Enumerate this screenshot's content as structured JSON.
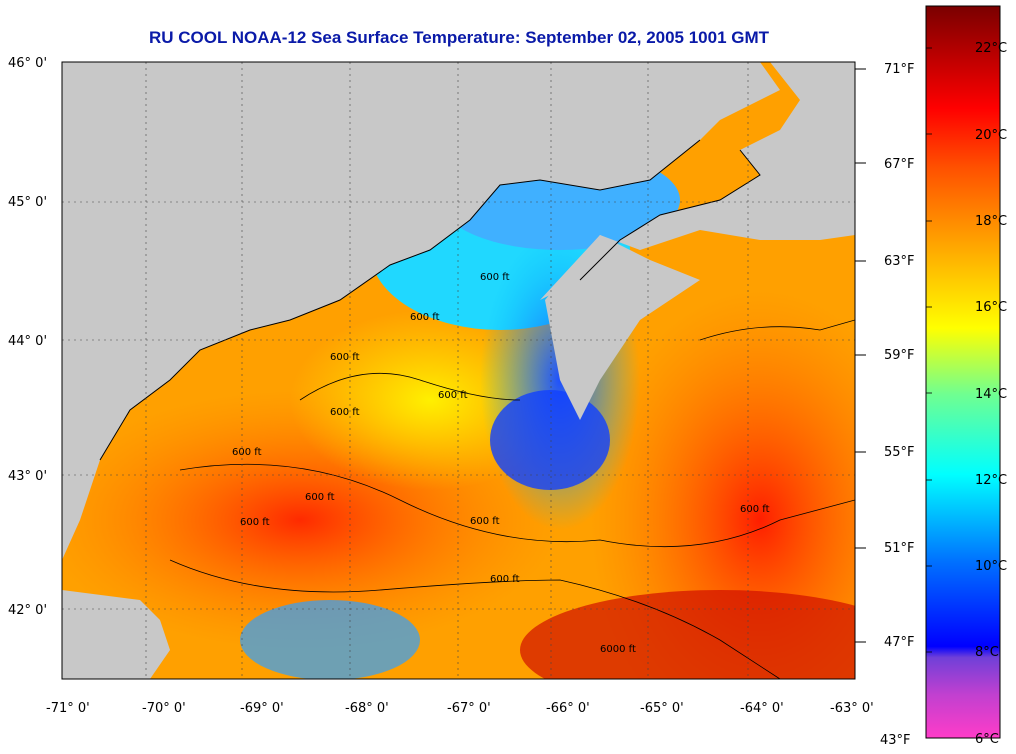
{
  "title": "RU COOL  NOAA-12  Sea Surface Temperature:  September 02, 2005 1001 GMT",
  "latitude_labels": [
    "46° 0'",
    "45° 0'",
    "44° 0'",
    "43° 0'",
    "42° 0'"
  ],
  "longitude_labels": [
    "-71° 0'",
    "-70° 0'",
    "-69° 0'",
    "-68° 0'",
    "-67° 0'",
    "-66° 0'",
    "-65° 0'",
    "-64° 0'",
    "-63° 0'"
  ],
  "fahrenheit_labels": [
    "71°F",
    "67°F",
    "63°F",
    "59°F",
    "55°F",
    "51°F",
    "47°F",
    "43°F"
  ],
  "celsius_labels": [
    "22°C",
    "20°C",
    "18°C",
    "16°C",
    "14°C",
    "12°C",
    "10°C",
    "8°C",
    "6°C"
  ],
  "depth_contour_labels": [
    "600 ft",
    "600 ft",
    "600 ft",
    "600 ft",
    "600 ft",
    "600 ft",
    "600 ft",
    "600 ft",
    "600 ft",
    "600 ft",
    "600 ft",
    "6000 ft"
  ],
  "colors": {
    "land": "#c8c8c8",
    "title": "#0a1aa8",
    "scale": [
      "#ff40c8",
      "#a040c8",
      "#0000ff",
      "#0080ff",
      "#00ffff",
      "#80ff80",
      "#ffff00",
      "#ffa000",
      "#ff4000",
      "#ff0000",
      "#8b0000"
    ]
  }
}
